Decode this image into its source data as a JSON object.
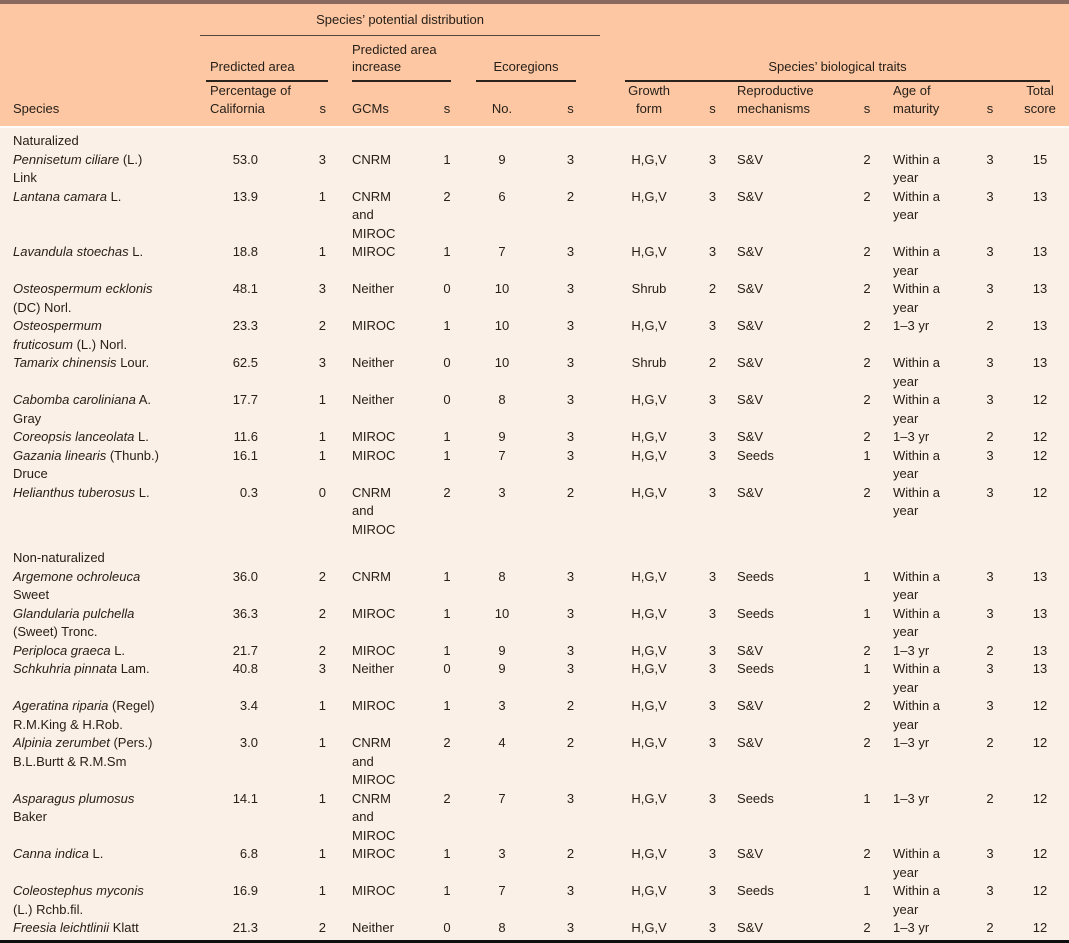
{
  "colors": {
    "header_bg": "#fdc7a3",
    "body_bg": "#fbf0e7",
    "top_bar": "#8a6a5e",
    "text": "#272019",
    "rule": "#2a231d",
    "divider": "#fffdf9",
    "bottom_rule": "#0f0f0f"
  },
  "table": {
    "title": "Species’ potential distribution",
    "groups": {
      "predicted_area": "Predicted area",
      "predicted_area_increase": "Predicted area increase",
      "ecoregions": "Ecoregions",
      "biological_traits": "Species’ biological traits"
    },
    "columns": {
      "species": "Species",
      "pct": "Percentage of California",
      "s": "s",
      "gcms": "GCMs",
      "no": "No.",
      "growth": "Growth form",
      "repro": "Reproductive mechanisms",
      "maturity": "Age of maturity",
      "total": "Total score"
    },
    "sections": [
      {
        "label": "Naturalized",
        "rows": [
          {
            "name": "Pennisetum ciliare",
            "authority": "(L.) Link",
            "pct": "53.0",
            "s1": 3,
            "gcms": "CNRM",
            "s2": 1,
            "no": 9,
            "s3": 3,
            "growth": "H,G,V",
            "s4": 3,
            "repro": "S&V",
            "s5": 2,
            "maturity": "Within a year",
            "s6": 3,
            "total": 15
          },
          {
            "name": "Lantana camara",
            "authority": "L.",
            "pct": "13.9",
            "s1": 1,
            "gcms": "CNRM and MIROC",
            "s2": 2,
            "no": 6,
            "s3": 2,
            "growth": "H,G,V",
            "s4": 3,
            "repro": "S&V",
            "s5": 2,
            "maturity": "Within a year",
            "s6": 3,
            "total": 13
          },
          {
            "name": "Lavandula stoechas",
            "authority": "L.",
            "pct": "18.8",
            "s1": 1,
            "gcms": "MIROC",
            "s2": 1,
            "no": 7,
            "s3": 3,
            "growth": "H,G,V",
            "s4": 3,
            "repro": "S&V",
            "s5": 2,
            "maturity": "Within a year",
            "s6": 3,
            "total": 13
          },
          {
            "name": "Osteospermum ecklonis",
            "authority": "(DC) Norl.",
            "pct": "48.1",
            "s1": 3,
            "gcms": "Neither",
            "s2": 0,
            "no": 10,
            "s3": 3,
            "growth": "Shrub",
            "s4": 2,
            "repro": "S&V",
            "s5": 2,
            "maturity": "Within a year",
            "s6": 3,
            "total": 13
          },
          {
            "name": "Osteospermum fruticosum",
            "authority": "(L.) Norl.",
            "pct": "23.3",
            "s1": 2,
            "gcms": "MIROC",
            "s2": 1,
            "no": 10,
            "s3": 3,
            "growth": "H,G,V",
            "s4": 3,
            "repro": "S&V",
            "s5": 2,
            "maturity": "1–3 yr",
            "s6": 2,
            "total": 13
          },
          {
            "name": "Tamarix chinensis",
            "authority": "Lour.",
            "pct": "62.5",
            "s1": 3,
            "gcms": "Neither",
            "s2": 0,
            "no": 10,
            "s3": 3,
            "growth": "Shrub",
            "s4": 2,
            "repro": "S&V",
            "s5": 2,
            "maturity": "Within a year",
            "s6": 3,
            "total": 13
          },
          {
            "name": "Cabomba caroliniana",
            "authority": "A. Gray",
            "pct": "17.7",
            "s1": 1,
            "gcms": "Neither",
            "s2": 0,
            "no": 8,
            "s3": 3,
            "growth": "H,G,V",
            "s4": 3,
            "repro": "S&V",
            "s5": 2,
            "maturity": "Within a year",
            "s6": 3,
            "total": 12
          },
          {
            "name": "Coreopsis lanceolata",
            "authority": "L.",
            "pct": "11.6",
            "s1": 1,
            "gcms": "MIROC",
            "s2": 1,
            "no": 9,
            "s3": 3,
            "growth": "H,G,V",
            "s4": 3,
            "repro": "S&V",
            "s5": 2,
            "maturity": "1–3 yr",
            "s6": 2,
            "total": 12
          },
          {
            "name": "Gazania linearis",
            "authority": "(Thunb.) Druce",
            "pct": "16.1",
            "s1": 1,
            "gcms": "MIROC",
            "s2": 1,
            "no": 7,
            "s3": 3,
            "growth": "H,G,V",
            "s4": 3,
            "repro": "Seeds",
            "s5": 1,
            "maturity": "Within a year",
            "s6": 3,
            "total": 12
          },
          {
            "name": "Helianthus tuberosus",
            "authority": "L.",
            "pct": "0.3",
            "s1": 0,
            "gcms": "CNRM and MIROC",
            "s2": 2,
            "no": 3,
            "s3": 2,
            "growth": "H,G,V",
            "s4": 3,
            "repro": "S&V",
            "s5": 2,
            "maturity": "Within a year",
            "s6": 3,
            "total": 12
          }
        ]
      },
      {
        "label": "Non-naturalized",
        "rows": [
          {
            "name": "Argemone ochroleuca",
            "authority": "Sweet",
            "pct": "36.0",
            "s1": 2,
            "gcms": "CNRM",
            "s2": 1,
            "no": 8,
            "s3": 3,
            "growth": "H,G,V",
            "s4": 3,
            "repro": "Seeds",
            "s5": 1,
            "maturity": "Within a year",
            "s6": 3,
            "total": 13
          },
          {
            "name": "Glandularia pulchella",
            "authority": "(Sweet) Tronc.",
            "pct": "36.3",
            "s1": 2,
            "gcms": "MIROC",
            "s2": 1,
            "no": 10,
            "s3": 3,
            "growth": "H,G,V",
            "s4": 3,
            "repro": "Seeds",
            "s5": 1,
            "maturity": "Within a year",
            "s6": 3,
            "total": 13
          },
          {
            "name": "Periploca graeca",
            "authority": "L.",
            "pct": "21.7",
            "s1": 2,
            "gcms": "MIROC",
            "s2": 1,
            "no": 9,
            "s3": 3,
            "growth": "H,G,V",
            "s4": 3,
            "repro": "S&V",
            "s5": 2,
            "maturity": "1–3 yr",
            "s6": 2,
            "total": 13
          },
          {
            "name": "Schkuhria pinnata",
            "authority": "Lam.",
            "pct": "40.8",
            "s1": 3,
            "gcms": "Neither",
            "s2": 0,
            "no": 9,
            "s3": 3,
            "growth": "H,G,V",
            "s4": 3,
            "repro": "Seeds",
            "s5": 1,
            "maturity": "Within a year",
            "s6": 3,
            "total": 13
          },
          {
            "name": "Ageratina riparia",
            "authority": "(Regel) R.M.King & H.Rob.",
            "pct": "3.4",
            "s1": 1,
            "gcms": "MIROC",
            "s2": 1,
            "no": 3,
            "s3": 2,
            "growth": "H,G,V",
            "s4": 3,
            "repro": "S&V",
            "s5": 2,
            "maturity": "Within a year",
            "s6": 3,
            "total": 12
          },
          {
            "name": "Alpinia zerumbet",
            "authority": "(Pers.) B.L.Burtt & R.M.Sm",
            "pct": "3.0",
            "s1": 1,
            "gcms": "CNRM and MIROC",
            "s2": 2,
            "no": 4,
            "s3": 2,
            "growth": "H,G,V",
            "s4": 3,
            "repro": "S&V",
            "s5": 2,
            "maturity": "1–3 yr",
            "s6": 2,
            "total": 12
          },
          {
            "name": "Asparagus plumosus",
            "authority": "Baker",
            "pct": "14.1",
            "s1": 1,
            "gcms": "CNRM and MIROC",
            "s2": 2,
            "no": 7,
            "s3": 3,
            "growth": "H,G,V",
            "s4": 3,
            "repro": "Seeds",
            "s5": 1,
            "maturity": "1–3 yr",
            "s6": 2,
            "total": 12
          },
          {
            "name": "Canna indica",
            "authority": "L.",
            "pct": "6.8",
            "s1": 1,
            "gcms": "MIROC",
            "s2": 1,
            "no": 3,
            "s3": 2,
            "growth": "H,G,V",
            "s4": 3,
            "repro": "S&V",
            "s5": 2,
            "maturity": "Within a year",
            "s6": 3,
            "total": 12
          },
          {
            "name": "Coleostephus myconis",
            "authority": "(L.) Rchb.fil.",
            "pct": "16.9",
            "s1": 1,
            "gcms": "MIROC",
            "s2": 1,
            "no": 7,
            "s3": 3,
            "growth": "H,G,V",
            "s4": 3,
            "repro": "Seeds",
            "s5": 1,
            "maturity": "Within a year",
            "s6": 3,
            "total": 12
          },
          {
            "name": "Freesia leichtlinii",
            "authority": "Klatt",
            "pct": "21.3",
            "s1": 2,
            "gcms": "Neither",
            "s2": 0,
            "no": 8,
            "s3": 3,
            "growth": "H,G,V",
            "s4": 3,
            "repro": "S&V",
            "s5": 2,
            "maturity": "1–3 yr",
            "s6": 2,
            "total": 12
          }
        ]
      }
    ]
  }
}
